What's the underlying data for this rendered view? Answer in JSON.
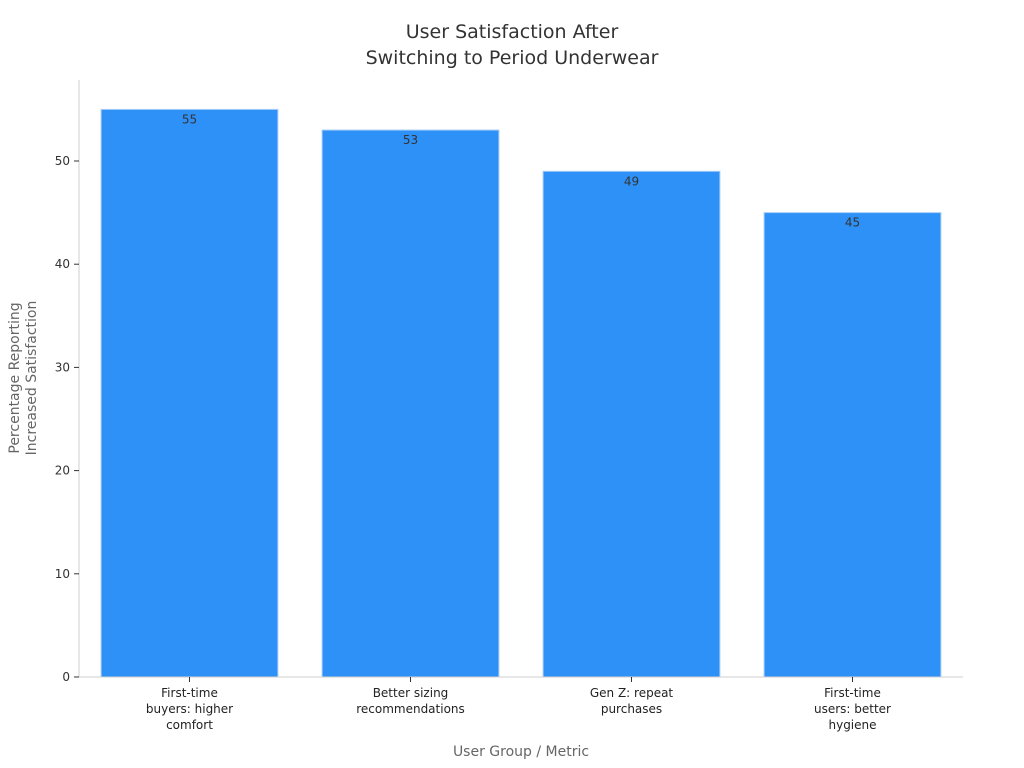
{
  "chart_data": {
    "type": "bar",
    "title_lines": [
      "User Satisfaction After",
      "Switching to Period Underwear"
    ],
    "xlabel": "User Group / Metric",
    "ylabel_lines": [
      "Percentage Reporting",
      "Increased Satisfaction"
    ],
    "categories": [
      [
        "First-time",
        "buyers: higher",
        "comfort"
      ],
      [
        "Better sizing",
        "recommendations"
      ],
      [
        "Gen Z: repeat",
        "purchases"
      ],
      [
        "First-time",
        "users: better",
        "hygiene"
      ]
    ],
    "values": [
      55,
      53,
      49,
      45
    ],
    "data_labels": [
      "55",
      "53",
      "49",
      "45"
    ],
    "yticks": [
      0,
      10,
      20,
      30,
      40,
      50
    ],
    "ylim": [
      0,
      58
    ],
    "grid": false,
    "bar_color": "#2E91F8",
    "bar_edge_color": "#A9CDF7",
    "axis_color": "#CFCFCF",
    "text_color": "#333333",
    "label_color": "#666666"
  }
}
